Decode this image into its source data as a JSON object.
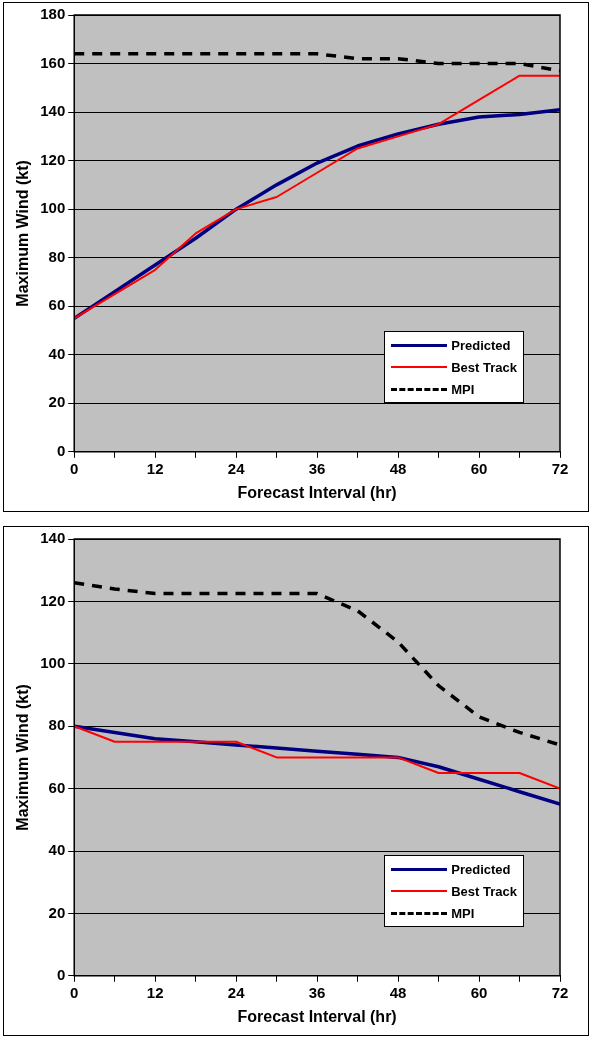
{
  "chart_data": [
    {
      "type": "line",
      "xlabel": "Forecast Interval (hr)",
      "ylabel": "Maximum Wind (kt)",
      "x": [
        0,
        6,
        12,
        18,
        24,
        30,
        36,
        42,
        48,
        54,
        60,
        66,
        72
      ],
      "series": [
        {
          "name": "Predicted",
          "color": "#000080",
          "values": [
            55,
            66,
            77,
            88,
            100,
            110,
            119,
            126,
            131,
            135,
            138,
            139,
            141
          ]
        },
        {
          "name": "Best Track",
          "color": "#ff0000",
          "values": [
            55,
            65,
            75,
            90,
            100,
            105,
            115,
            125,
            130,
            135,
            145,
            155,
            155
          ]
        },
        {
          "name": "MPI",
          "color": "#000000",
          "line_style": "dashed",
          "values": [
            164,
            164,
            164,
            164,
            164,
            164,
            164,
            162,
            162,
            160,
            160,
            160,
            157
          ]
        }
      ],
      "xlim": [
        0,
        72
      ],
      "xticks": [
        0,
        {
          "value": 6,
          "label": null
        },
        12,
        {
          "value": 18,
          "label": null
        },
        24,
        {
          "value": 30,
          "label": null
        },
        36,
        {
          "value": 42,
          "label": null
        },
        48,
        {
          "value": 54,
          "label": null
        },
        60,
        {
          "value": 66,
          "label": null
        },
        72
      ],
      "ylim": [
        0,
        180
      ],
      "yticks": [
        0,
        20,
        40,
        60,
        80,
        100,
        120,
        140,
        160,
        180
      ],
      "grid": "y",
      "legend": "bottom right",
      "marker": "none",
      "line_style": "solid"
    },
    {
      "type": "line",
      "xlabel": "Forecast Interval (hr)",
      "ylabel": "Maximum Wind (kt)",
      "x": [
        0,
        6,
        12,
        18,
        24,
        30,
        36,
        42,
        48,
        54,
        60,
        66,
        72
      ],
      "series": [
        {
          "name": "Predicted",
          "color": "#000080",
          "values": [
            80,
            78,
            76,
            75,
            74,
            73,
            72,
            71,
            70,
            67,
            63,
            59,
            55
          ]
        },
        {
          "name": "Best Track",
          "color": "#ff0000",
          "values": [
            80,
            75,
            75,
            75,
            75,
            70,
            70,
            70,
            70,
            65,
            65,
            65,
            60
          ]
        },
        {
          "name": "MPI",
          "color": "#000000",
          "line_style": "dashed",
          "values": [
            126,
            124,
            122.5,
            122.5,
            122.5,
            122.5,
            122.5,
            117,
            107,
            93,
            83,
            78,
            74
          ]
        }
      ],
      "xlim": [
        0,
        72
      ],
      "xticks": [
        0,
        {
          "value": 6,
          "label": null
        },
        12,
        {
          "value": 18,
          "label": null
        },
        24,
        {
          "value": 30,
          "label": null
        },
        36,
        {
          "value": 42,
          "label": null
        },
        48,
        {
          "value": 54,
          "label": null
        },
        60,
        {
          "value": 66,
          "label": null
        },
        72
      ],
      "ylim": [
        0,
        140
      ],
      "yticks": [
        0,
        20,
        40,
        60,
        80,
        100,
        120,
        140
      ],
      "grid": "y",
      "legend": "bottom right",
      "marker": "none",
      "line_style": "solid"
    }
  ]
}
